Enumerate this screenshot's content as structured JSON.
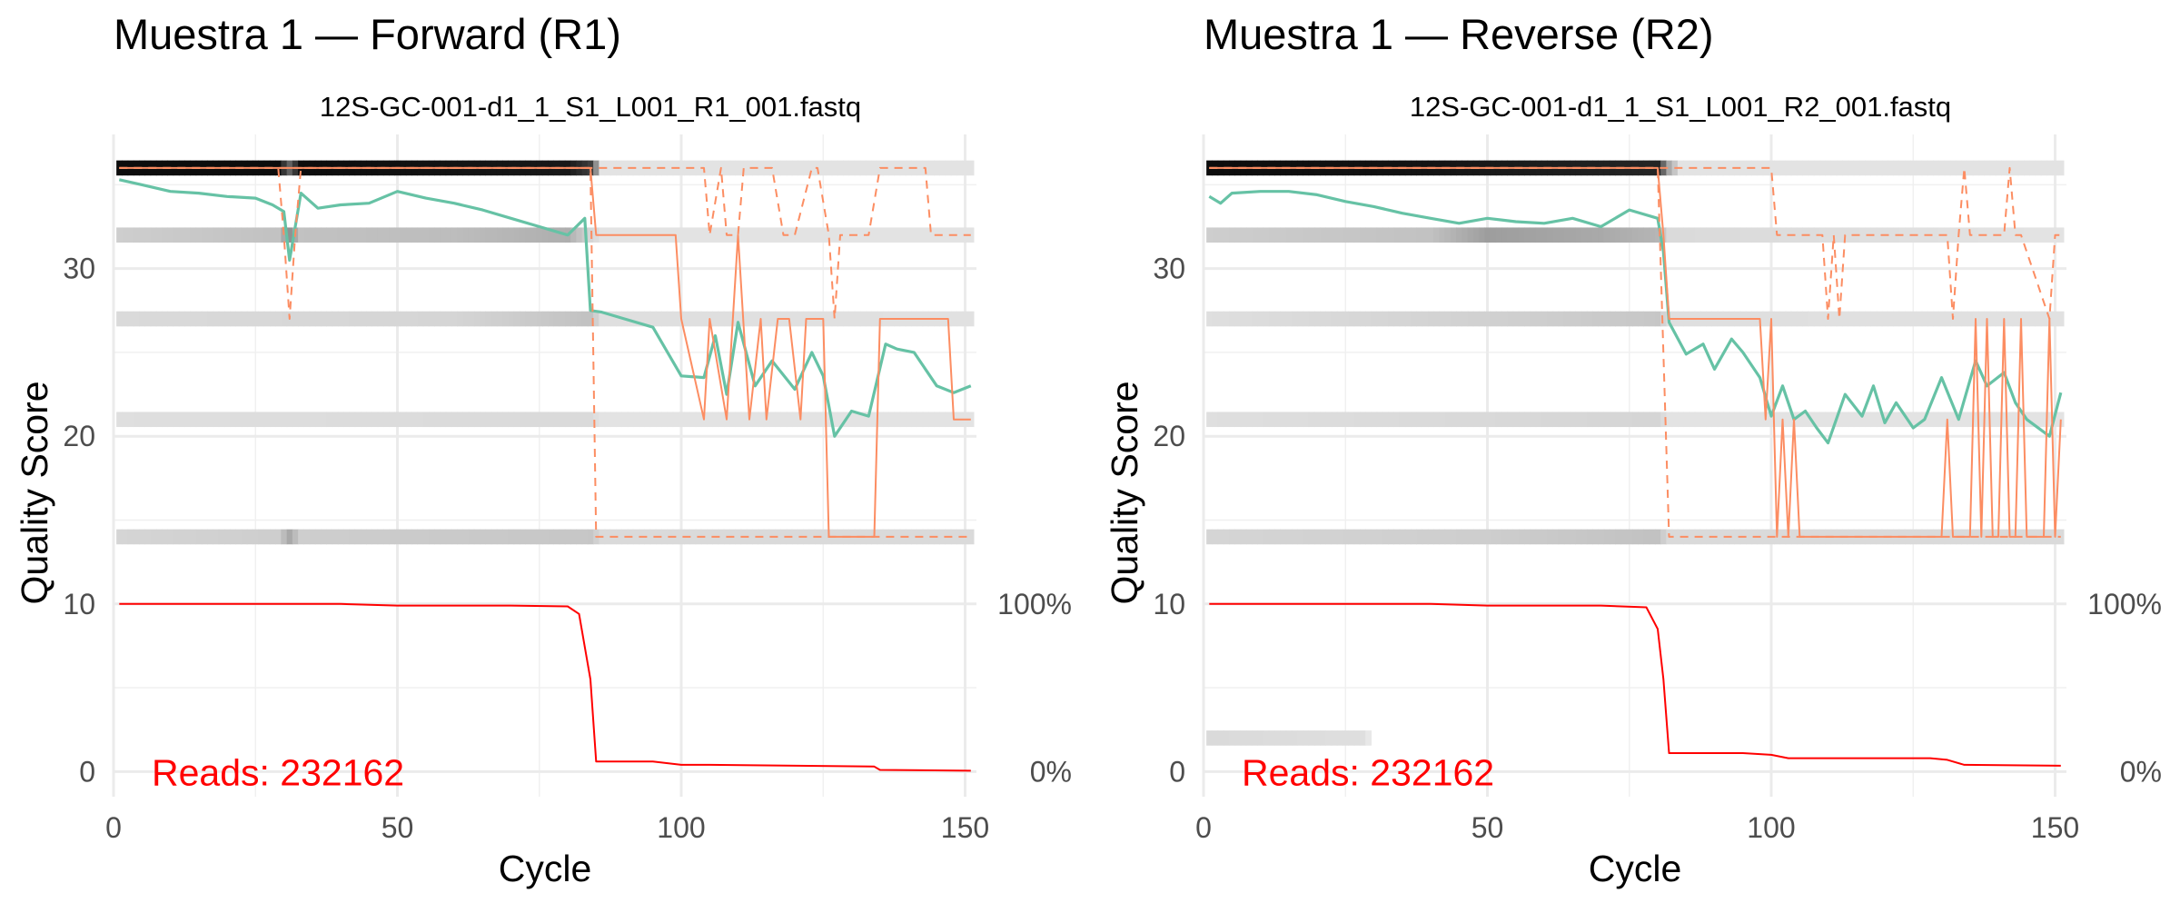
{
  "chart_data": [
    {
      "type": "line",
      "title": "Muestra 1 — Forward (R1)",
      "subtitle": "12S-GC-001-d1_1_S1_L001_R1_001.fastq",
      "xlabel": "Cycle",
      "ylabel": "Quality Score",
      "xlim": [
        0,
        152
      ],
      "ylim": [
        -1.5,
        38
      ],
      "x_ticks": [
        0,
        50,
        100,
        150
      ],
      "y_ticks": [
        0,
        10,
        20,
        30
      ],
      "secondary_axis_labels": [
        "100%",
        "0%"
      ],
      "grid": true,
      "reads_label": "Reads:  232162",
      "colors": {
        "mean": "#66c2a5",
        "quantile": "#fc8d62",
        "reads": "#ff0000",
        "heat_dark": "#000000",
        "heat_light": "#f2f2f2"
      },
      "heatmap_bands": [
        {
          "score": 36,
          "intensity": [
            [
              1,
              0.95
            ],
            [
              29,
              0.95
            ],
            [
              31,
              0.6
            ],
            [
              33,
              0.95
            ],
            [
              80,
              0.9
            ],
            [
              84,
              0.75
            ],
            [
              86,
              0.06
            ],
            [
              151,
              0.06
            ]
          ]
        },
        {
          "score": 32,
          "intensity": [
            [
              1,
              0.15
            ],
            [
              29,
              0.2
            ],
            [
              31,
              0.4
            ],
            [
              33,
              0.2
            ],
            [
              60,
              0.22
            ],
            [
              80,
              0.28
            ],
            [
              84,
              0.12
            ],
            [
              86,
              0.06
            ],
            [
              151,
              0.06
            ]
          ]
        },
        {
          "score": 27,
          "intensity": [
            [
              1,
              0.1
            ],
            [
              60,
              0.12
            ],
            [
              84,
              0.2
            ],
            [
              86,
              0.08
            ],
            [
              151,
              0.07
            ]
          ]
        },
        {
          "score": 21,
          "intensity": [
            [
              1,
              0.08
            ],
            [
              84,
              0.1
            ],
            [
              86,
              0.06
            ],
            [
              151,
              0.06
            ]
          ]
        },
        {
          "score": 14,
          "intensity": [
            [
              1,
              0.12
            ],
            [
              29,
              0.15
            ],
            [
              31,
              0.3
            ],
            [
              33,
              0.15
            ],
            [
              84,
              0.18
            ],
            [
              86,
              0.1
            ],
            [
              151,
              0.1
            ]
          ]
        }
      ],
      "series": [
        {
          "name": "mean",
          "x": [
            1,
            5,
            10,
            15,
            20,
            25,
            28,
            30,
            31,
            33,
            36,
            40,
            45,
            50,
            55,
            60,
            65,
            70,
            75,
            80,
            83,
            84,
            86,
            90,
            95,
            100,
            104,
            106,
            108,
            110,
            113,
            116,
            120,
            123,
            125,
            127,
            130,
            133,
            136,
            138,
            141,
            145,
            148,
            151
          ],
          "y": [
            35.3,
            35.0,
            34.6,
            34.5,
            34.3,
            34.2,
            33.8,
            33.4,
            30.5,
            34.5,
            33.6,
            33.8,
            33.9,
            34.6,
            34.2,
            33.9,
            33.5,
            33.0,
            32.5,
            32.0,
            33.0,
            27.5,
            27.4,
            27.0,
            26.5,
            23.6,
            23.5,
            26.0,
            22.5,
            26.8,
            23.0,
            24.5,
            22.8,
            25.0,
            23.6,
            20.0,
            21.5,
            21.2,
            25.5,
            25.2,
            25.0,
            23.0,
            22.6,
            23.0
          ]
        },
        {
          "name": "median",
          "x": [
            1,
            84,
            85,
            99,
            100,
            104,
            105,
            108,
            110,
            112,
            114,
            115,
            117,
            119,
            121,
            122,
            125,
            126,
            134,
            135,
            147,
            148,
            151
          ],
          "y": [
            36,
            36,
            32,
            32,
            27,
            21,
            27,
            21,
            32,
            21,
            27,
            21,
            27,
            27,
            21,
            27,
            27,
            14,
            14,
            27,
            27,
            21,
            21
          ]
        },
        {
          "name": "q25",
          "dashed": true,
          "x": [
            1,
            29,
            30,
            31,
            32,
            33,
            84,
            85,
            151
          ],
          "y": [
            36,
            36,
            32,
            27,
            32,
            36,
            36,
            14,
            14
          ]
        },
        {
          "name": "q75",
          "dashed": true,
          "x": [
            1,
            101,
            104,
            105,
            107,
            108,
            110,
            111,
            116,
            118,
            120,
            123,
            124,
            126,
            127,
            128,
            130,
            133,
            135,
            136,
            143,
            144,
            151
          ],
          "y": [
            36,
            36,
            36,
            32,
            36,
            32,
            32,
            36,
            36,
            32,
            32,
            36,
            36,
            32,
            27,
            32,
            32,
            32,
            36,
            36,
            36,
            32,
            32
          ]
        },
        {
          "name": "reads",
          "x": [
            1,
            40,
            50,
            70,
            80,
            82,
            84,
            85,
            95,
            100,
            105,
            134,
            135,
            151
          ],
          "y": [
            10,
            10,
            9.9,
            9.9,
            9.85,
            9.4,
            5.5,
            0.6,
            0.6,
            0.4,
            0.4,
            0.3,
            0.1,
            0.05
          ]
        }
      ]
    },
    {
      "type": "line",
      "title": "Muestra 1 — Reverse (R2)",
      "subtitle": "12S-GC-001-d1_1_S1_L001_R2_001.fastq",
      "xlabel": "Cycle",
      "ylabel": "Quality Score",
      "xlim": [
        0,
        152
      ],
      "ylim": [
        -1.5,
        38
      ],
      "x_ticks": [
        0,
        50,
        100,
        150
      ],
      "y_ticks": [
        0,
        10,
        20,
        30
      ],
      "secondary_axis_labels": [
        "100%",
        "0%"
      ],
      "grid": true,
      "reads_label": "Reads:  232162",
      "colors": {
        "mean": "#66c2a5",
        "quantile": "#fc8d62",
        "reads": "#ff0000",
        "heat_dark": "#000000",
        "heat_light": "#f2f2f2"
      },
      "heatmap_bands": [
        {
          "score": 36,
          "intensity": [
            [
              1,
              0.95
            ],
            [
              40,
              0.92
            ],
            [
              60,
              0.88
            ],
            [
              80,
              0.85
            ],
            [
              82,
              0.3
            ],
            [
              84,
              0.06
            ],
            [
              151,
              0.06
            ]
          ]
        },
        {
          "score": 32,
          "intensity": [
            [
              1,
              0.15
            ],
            [
              40,
              0.2
            ],
            [
              50,
              0.35
            ],
            [
              70,
              0.3
            ],
            [
              80,
              0.25
            ],
            [
              82,
              0.1
            ],
            [
              151,
              0.06
            ]
          ]
        },
        {
          "score": 27,
          "intensity": [
            [
              1,
              0.08
            ],
            [
              60,
              0.15
            ],
            [
              80,
              0.18
            ],
            [
              82,
              0.08
            ],
            [
              151,
              0.07
            ]
          ]
        },
        {
          "score": 21,
          "intensity": [
            [
              1,
              0.08
            ],
            [
              80,
              0.12
            ],
            [
              82,
              0.06
            ],
            [
              151,
              0.06
            ]
          ]
        },
        {
          "score": 14,
          "intensity": [
            [
              1,
              0.12
            ],
            [
              50,
              0.15
            ],
            [
              80,
              0.2
            ],
            [
              82,
              0.1
            ],
            [
              151,
              0.1
            ]
          ]
        },
        {
          "score": 2,
          "intensity": [
            [
              1,
              0.1
            ],
            [
              28,
              0.08
            ],
            [
              30,
              0.0
            ],
            [
              151,
              0.0
            ]
          ]
        }
      ],
      "series": [
        {
          "name": "mean",
          "x": [
            1,
            3,
            5,
            10,
            15,
            20,
            25,
            30,
            35,
            40,
            45,
            50,
            55,
            60,
            65,
            70,
            75,
            80,
            81,
            82,
            85,
            88,
            90,
            93,
            95,
            98,
            100,
            102,
            104,
            106,
            108,
            110,
            113,
            116,
            118,
            120,
            122,
            125,
            127,
            130,
            133,
            136,
            138,
            141,
            143,
            145,
            149,
            151
          ],
          "y": [
            34.3,
            33.9,
            34.5,
            34.6,
            34.6,
            34.4,
            34.0,
            33.7,
            33.3,
            33.0,
            32.7,
            33.0,
            32.8,
            32.7,
            33.0,
            32.5,
            33.5,
            33.0,
            31.0,
            26.8,
            24.9,
            25.5,
            24.0,
            25.8,
            25.0,
            23.5,
            21.2,
            23.0,
            21.0,
            21.5,
            20.5,
            19.6,
            22.5,
            21.2,
            23.0,
            20.8,
            22.0,
            20.5,
            21.0,
            23.5,
            21.0,
            24.5,
            23.0,
            23.8,
            22.0,
            21.0,
            20.0,
            22.6
          ]
        },
        {
          "name": "median",
          "x": [
            1,
            80,
            81,
            82,
            98,
            99,
            100,
            101,
            102,
            103,
            104,
            105,
            130,
            131,
            132,
            135,
            136,
            137,
            138,
            139,
            140,
            141,
            142,
            143,
            144,
            145,
            148,
            149,
            150,
            151
          ],
          "y": [
            36,
            36,
            32,
            27,
            27,
            21,
            27,
            14,
            21,
            14,
            21,
            14,
            14,
            21,
            14,
            14,
            27,
            14,
            27,
            14,
            14,
            27,
            14,
            14,
            27,
            14,
            14,
            27,
            14,
            21
          ]
        },
        {
          "name": "q25",
          "dashed": true,
          "x": [
            1,
            80,
            82,
            151
          ],
          "y": [
            36,
            36,
            14,
            14
          ]
        },
        {
          "name": "q75",
          "dashed": true,
          "x": [
            1,
            100,
            101,
            109,
            110,
            111,
            112,
            113,
            114,
            131,
            132,
            133,
            134,
            135,
            141,
            142,
            143,
            144,
            149,
            150,
            151
          ],
          "y": [
            36,
            36,
            32,
            32,
            27,
            32,
            27,
            32,
            32,
            32,
            27,
            32,
            36,
            32,
            32,
            36,
            32,
            32,
            27,
            32,
            32
          ]
        },
        {
          "name": "reads",
          "x": [
            1,
            40,
            50,
            70,
            78,
            80,
            81,
            82,
            95,
            100,
            103,
            128,
            131,
            134,
            151
          ],
          "y": [
            10,
            10,
            9.9,
            9.9,
            9.8,
            8.5,
            5.5,
            1.1,
            1.1,
            1.0,
            0.8,
            0.8,
            0.7,
            0.4,
            0.35
          ]
        }
      ]
    }
  ]
}
